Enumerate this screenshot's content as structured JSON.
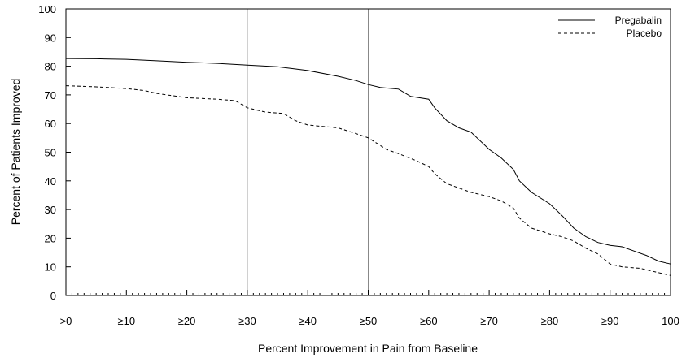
{
  "chart_data": {
    "type": "line",
    "title": "",
    "xlabel": "Percent Improvement in Pain from Baseline",
    "ylabel": "Percent of Patients Improved",
    "xlim": [
      0,
      100
    ],
    "ylim": [
      0,
      100
    ],
    "x_tick_values": [
      0,
      10,
      20,
      30,
      40,
      50,
      60,
      70,
      80,
      90,
      100
    ],
    "x_tick_labels": [
      ">0",
      "≥10",
      "≥20",
      "≥30",
      "≥40",
      "≥50",
      "≥60",
      "≥70",
      "≥80",
      "≥90",
      "100"
    ],
    "y_tick_values": [
      0,
      10,
      20,
      30,
      40,
      50,
      60,
      70,
      80,
      90,
      100
    ],
    "y_tick_labels": [
      "0",
      "10",
      "20",
      "30",
      "40",
      "50",
      "60",
      "70",
      "80",
      "90",
      "100"
    ],
    "reference_lines_x": [
      30,
      50
    ],
    "legend_position": "top-right",
    "series": [
      {
        "name": "Pregabalin",
        "style": "solid",
        "x": [
          0,
          5,
          10,
          15,
          20,
          25,
          30,
          35,
          40,
          45,
          48,
          50,
          52,
          55,
          57,
          60,
          61,
          63,
          65,
          67,
          70,
          72,
          74,
          75,
          77,
          80,
          82,
          84,
          86,
          88,
          90,
          92,
          94,
          96,
          98,
          100
        ],
        "y": [
          82.7,
          82.6,
          82.4,
          81.9,
          81.4,
          81.0,
          80.4,
          79.8,
          78.5,
          76.5,
          75.0,
          73.6,
          72.6,
          72.0,
          69.5,
          68.5,
          65.5,
          61.0,
          58.5,
          57.0,
          51.0,
          48.0,
          44.0,
          40.0,
          36.0,
          32.0,
          28.0,
          23.5,
          20.5,
          18.5,
          17.5,
          17.0,
          15.5,
          14.0,
          12.0,
          11.0
        ]
      },
      {
        "name": "Placebo",
        "style": "dashed",
        "x": [
          0,
          5,
          10,
          13,
          15,
          20,
          25,
          28,
          30,
          33,
          36,
          38,
          40,
          45,
          48,
          50,
          53,
          55,
          58,
          60,
          61,
          63,
          65,
          67,
          70,
          72,
          74,
          75,
          77,
          80,
          82,
          84,
          86,
          88,
          90,
          92,
          95,
          98,
          100
        ],
        "y": [
          73.2,
          72.8,
          72.2,
          71.5,
          70.5,
          69.0,
          68.5,
          68.0,
          65.5,
          64.0,
          63.5,
          61.0,
          59.5,
          58.5,
          56.5,
          55.0,
          51.0,
          49.5,
          47.0,
          45.0,
          42.5,
          39.0,
          37.5,
          36.0,
          34.5,
          33.0,
          30.5,
          27.0,
          23.5,
          21.5,
          20.5,
          19.0,
          16.5,
          14.5,
          11.0,
          10.0,
          9.5,
          8.0,
          7.0
        ]
      }
    ]
  }
}
